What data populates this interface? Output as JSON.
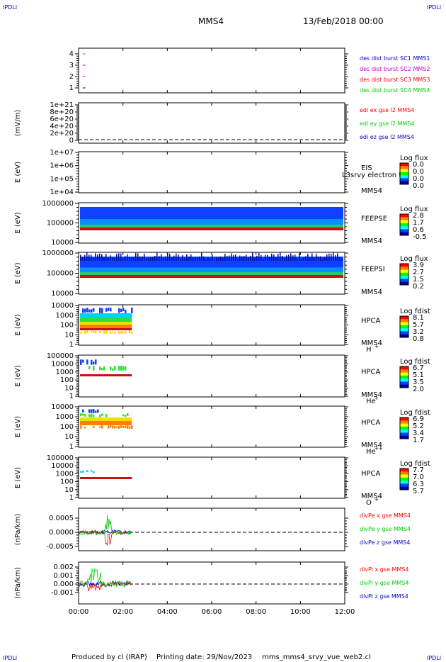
{
  "header": {
    "corner_label": "IPDLI",
    "spacecraft": "MMS4",
    "datetime": "13/Feb/2018 00:00"
  },
  "footer": {
    "produced_by": "Produced by cl (IRAP)",
    "printing_date": "Printing date: 29/Nov/2023",
    "script_name": "mms_mms4_srvy_vue_web2.cl"
  },
  "colors": {
    "black": "#000000",
    "red": "#ff0000",
    "green": "#00d000",
    "blue": "#0000cc",
    "magenta": "#cc00cc",
    "spec_red": "#cc1010",
    "spec_orange": "#ff8000",
    "spec_yellow": "#f0e000",
    "spec_green": "#30e030",
    "spec_cyan": "#00d0ff",
    "spec_blue": "#1040ff",
    "spec_darkblue": "#0010a0"
  },
  "chart_data": [
    {
      "type": "scatter",
      "id": "burst",
      "ylabel": "",
      "ytick_labels": [
        "4",
        "3",
        "2",
        "1"
      ],
      "ylim": [
        0.5,
        4.5
      ],
      "legend": [
        {
          "label": "des dist burst SC1 MMS1",
          "color": "#0000cc"
        },
        {
          "label": "des dist burst SC2 MMS2",
          "color": "#cc00cc"
        },
        {
          "label": "des dist burst SC3 MMS3",
          "color": "#ff0000"
        },
        {
          "label": "des dist burst SC4 MMS4",
          "color": "#00d000"
        }
      ],
      "marks": [
        {
          "x_hours": 0.25,
          "y": 4,
          "color": "#00d000"
        },
        {
          "x_hours": 0.25,
          "y": 3,
          "color": "#ff0000"
        },
        {
          "x_hours": 0.25,
          "y": 2,
          "color": "#cc00cc"
        },
        {
          "x_hours": 0.25,
          "y": 1,
          "color": "#0000cc"
        }
      ]
    },
    {
      "type": "line",
      "id": "efield",
      "ylabel": "(mV/m)",
      "ytick_labels": [
        "1e+21",
        "8e+20",
        "6e+20",
        "4e+20",
        "2e+20",
        "0"
      ],
      "ylim": [
        0,
        1e+21
      ],
      "legend": [
        {
          "label": "edi ex gse l2 MMS4",
          "color": "#ff0000"
        },
        {
          "label": "edi ey gse l2 MMS4",
          "color": "#00d000"
        },
        {
          "label": "edi ez gse l2 MMS4",
          "color": "#0000cc"
        }
      ]
    },
    {
      "type": "heatmap",
      "id": "eis",
      "ylabel": "E (eV)",
      "ytick_labels": [
        "1e+07",
        "1e+06",
        "1e+05",
        "1e+04"
      ],
      "instrument": "EIS",
      "instrument_extra": "L3srvy electron tof",
      "spacecraft_label": "MMS4",
      "colorbar_title": "Log flux",
      "colorbar_ticks": [
        "0.0",
        "0.0",
        "0.0",
        "0.0"
      ]
    },
    {
      "type": "heatmap",
      "id": "feepse",
      "ylabel": "E (eV)",
      "ytick_labels": [
        "1000000",
        "100000",
        "10000"
      ],
      "ylim": [
        10000,
        1000000
      ],
      "instrument": "FEEPSE",
      "spacecraft_label": "MMS4",
      "colorbar_title": "Log flux",
      "colorbar_ticks": [
        "2.8",
        "1.7",
        "0.6",
        "-0.5"
      ],
      "coverage_hours": [
        0,
        12
      ]
    },
    {
      "type": "heatmap",
      "id": "feepsi",
      "ylabel": "E (eV)",
      "ytick_labels": [
        "1000000",
        "100000",
        "10000"
      ],
      "ylim": [
        10000,
        1000000
      ],
      "instrument": "FEEPSI",
      "spacecraft_label": "MMS4",
      "colorbar_title": "Log flux",
      "colorbar_ticks": [
        "3.9",
        "2.7",
        "1.5",
        "0.2"
      ],
      "coverage_hours": [
        0,
        12
      ]
    },
    {
      "type": "heatmap",
      "id": "hpca_h",
      "ylabel": "E (eV)",
      "ytick_labels": [
        "10000",
        "1000",
        "100",
        "10",
        "1"
      ],
      "ylim": [
        1,
        30000
      ],
      "instrument": "HPCA",
      "spacecraft_label": "MMS4",
      "species": "H",
      "species_charge": "+",
      "colorbar_title": "Log fdist",
      "colorbar_ticks": [
        "8.1",
        "5.7",
        "3.2",
        "0.8"
      ],
      "coverage_hours": [
        0,
        2.4
      ]
    },
    {
      "type": "heatmap",
      "id": "hpca_he",
      "ylabel": "E (eV)",
      "ytick_labels": [
        "100000",
        "10000",
        "1000",
        "100",
        "10",
        "1"
      ],
      "ylim": [
        1,
        100000
      ],
      "instrument": "HPCA",
      "spacecraft_label": "MMS4",
      "species": "He",
      "species_charge": "+",
      "colorbar_title": "Log fdist",
      "colorbar_ticks": [
        "6.7",
        "5.1",
        "3.5",
        "2.0"
      ],
      "coverage_hours": [
        0,
        2.4
      ]
    },
    {
      "type": "heatmap",
      "id": "hpca_hepp",
      "ylabel": "E (eV)",
      "ytick_labels": [
        "10000",
        "1000",
        "100",
        "10",
        "1"
      ],
      "ylim": [
        1,
        10000
      ],
      "instrument": "HPCA",
      "spacecraft_label": "MMS4",
      "species": "He",
      "species_charge": "++",
      "colorbar_title": "Log fdist",
      "colorbar_ticks": [
        "6.9",
        "5.2",
        "3.4",
        "1.7"
      ],
      "coverage_hours": [
        0,
        2.4
      ]
    },
    {
      "type": "heatmap",
      "id": "hpca_o",
      "ylabel": "E (eV)",
      "ytick_labels": [
        "100000",
        "10000",
        "1000",
        "100",
        "10",
        "1"
      ],
      "ylim": [
        1,
        100000
      ],
      "instrument": "HPCA",
      "spacecraft_label": "MMS4",
      "species": "O",
      "species_charge": "+",
      "colorbar_title": "Log fdist",
      "colorbar_ticks": [
        "7.7",
        "7.0",
        "6.3",
        "5.7"
      ],
      "coverage_hours": [
        0,
        2.4
      ]
    },
    {
      "type": "line",
      "id": "divpe",
      "ylabel": "(nPa/km)",
      "ytick_labels": [
        "0.0005",
        "0.0000",
        "-0.0005"
      ],
      "ylim": [
        -0.0008,
        0.0008
      ],
      "legend": [
        {
          "label": "divPe x gse MMS4",
          "color": "#ff0000"
        },
        {
          "label": "divPe y gse MMS4",
          "color": "#00d000"
        },
        {
          "label": "divPe z gse MMS4",
          "color": "#0000cc"
        }
      ],
      "coverage_hours": [
        0,
        2.4
      ]
    },
    {
      "type": "line",
      "id": "divpi",
      "ylabel": "(nPa/km)",
      "ytick_labels": [
        "0.002",
        "0.001",
        "0.000",
        "-0.001"
      ],
      "ylim": [
        -0.0018,
        0.0025
      ],
      "legend": [
        {
          "label": "divPi x gse MMS4",
          "color": "#ff0000"
        },
        {
          "label": "divPi y gse MMS4",
          "color": "#00d000"
        },
        {
          "label": "divPi z gse MMS4",
          "color": "#0000cc"
        }
      ],
      "coverage_hours": [
        0,
        2.4
      ]
    }
  ],
  "time_axis": {
    "labels": [
      "00:00",
      "02:00",
      "04:00",
      "06:00",
      "08:00",
      "10:00",
      "12:00"
    ],
    "range_hours": [
      0,
      12
    ]
  }
}
